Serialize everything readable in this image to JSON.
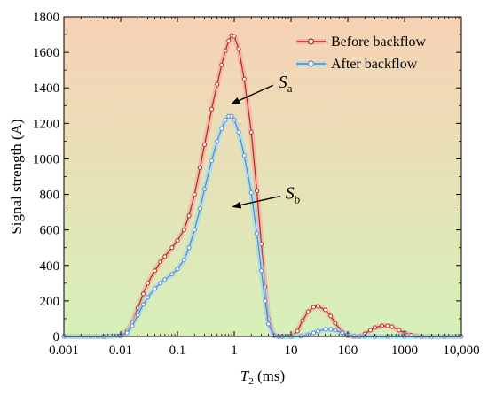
{
  "chart_data": {
    "type": "line",
    "xscale": "log",
    "xlim": [
      0.001,
      10000
    ],
    "ylim": [
      0,
      1800
    ],
    "xlabel": "T",
    "xlabel_sub": "2",
    "xlabel_unit": " (ms)",
    "ylabel": "Signal strength (A)",
    "xticks": [
      0.001,
      0.01,
      0.1,
      1,
      10,
      100,
      1000,
      10000
    ],
    "xtick_labels": [
      "0.001",
      "0.01",
      "0.1",
      "1",
      "10",
      "100",
      "1000",
      "10,000"
    ],
    "yticks": [
      0,
      200,
      400,
      600,
      800,
      1000,
      1200,
      1400,
      1600,
      1800
    ],
    "ytick_labels": [
      "0",
      "200",
      "400",
      "600",
      "800",
      "1000",
      "1200",
      "1400",
      "1600",
      "1800"
    ],
    "legend_position": "top-right",
    "background": {
      "top": "#f7d2b6",
      "bottom": "#d6f0b8"
    },
    "series": [
      {
        "name": "Before backflow",
        "color": "#b3271b",
        "glow": "#f4a8a0",
        "x": [
          0.001,
          0.005,
          0.01,
          0.013,
          0.016,
          0.02,
          0.025,
          0.03,
          0.04,
          0.05,
          0.06,
          0.08,
          0.1,
          0.13,
          0.16,
          0.2,
          0.25,
          0.3,
          0.4,
          0.5,
          0.6,
          0.7,
          0.8,
          0.9,
          1.0,
          1.2,
          1.5,
          2.0,
          2.5,
          3.0,
          3.5,
          4.0,
          5.0,
          6.0,
          7.0,
          10,
          13,
          16,
          20,
          25,
          30,
          40,
          50,
          60,
          80,
          100,
          130,
          160,
          200,
          250,
          300,
          400,
          500,
          600,
          800,
          1000,
          1300,
          1600,
          2000,
          3000,
          5000,
          10000
        ],
        "y": [
          0,
          0,
          5,
          30,
          80,
          160,
          240,
          300,
          370,
          420,
          450,
          500,
          540,
          600,
          680,
          800,
          950,
          1080,
          1280,
          1420,
          1530,
          1610,
          1665,
          1695,
          1690,
          1620,
          1450,
          1150,
          820,
          520,
          280,
          100,
          10,
          0,
          0,
          0,
          30,
          90,
          140,
          165,
          170,
          150,
          115,
          75,
          25,
          5,
          0,
          0,
          15,
          35,
          50,
          60,
          60,
          55,
          35,
          20,
          8,
          3,
          0,
          0,
          0,
          0
        ]
      },
      {
        "name": "After backflow",
        "color": "#6b79d6",
        "glow": "#8ee3ef",
        "x": [
          0.001,
          0.005,
          0.01,
          0.013,
          0.016,
          0.02,
          0.025,
          0.03,
          0.04,
          0.05,
          0.06,
          0.08,
          0.1,
          0.13,
          0.16,
          0.2,
          0.25,
          0.3,
          0.4,
          0.5,
          0.6,
          0.7,
          0.8,
          0.9,
          1.0,
          1.2,
          1.5,
          2.0,
          2.5,
          3.0,
          3.5,
          4.0,
          5.0,
          6.0,
          7.0,
          10,
          15,
          20,
          25,
          30,
          40,
          50,
          60,
          80,
          100,
          130,
          160,
          200,
          300,
          500,
          1000,
          2000,
          5000,
          10000
        ],
        "y": [
          0,
          0,
          3,
          20,
          60,
          120,
          180,
          220,
          270,
          300,
          320,
          350,
          380,
          430,
          500,
          600,
          720,
          830,
          990,
          1100,
          1170,
          1220,
          1240,
          1240,
          1220,
          1150,
          1020,
          810,
          580,
          370,
          200,
          70,
          5,
          0,
          0,
          0,
          2,
          10,
          20,
          30,
          40,
          40,
          35,
          20,
          10,
          2,
          0,
          0,
          0,
          0,
          0,
          0,
          0,
          0
        ]
      }
    ],
    "annotations": [
      {
        "text": "S",
        "sub": "a",
        "x": 6.0,
        "y": 1400,
        "arrow_to_x": 0.9,
        "arrow_to_y": 1310
      },
      {
        "text": "S",
        "sub": "b",
        "x": 8.0,
        "y": 775,
        "arrow_to_x": 0.95,
        "arrow_to_y": 730
      }
    ]
  }
}
